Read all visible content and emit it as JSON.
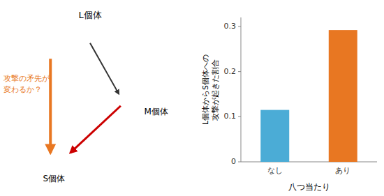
{
  "chart_data": {
    "type": "bar",
    "categories": [
      "なし",
      "あり"
    ],
    "values": [
      0.115,
      0.292
    ],
    "colors": [
      "#4BACD6",
      "#E87722"
    ],
    "xlabel": "八つ当たり",
    "ylabel": "L個体からS個体への\n攻撃が起きた割合",
    "ylim": [
      0,
      0.32
    ],
    "yticks": [
      0,
      0.1,
      0.2,
      0.3
    ],
    "grid": false,
    "annotations": [
      "L個体",
      "M個体",
      "S個体",
      "攻撃の矛先が\n変わるか？"
    ]
  }
}
